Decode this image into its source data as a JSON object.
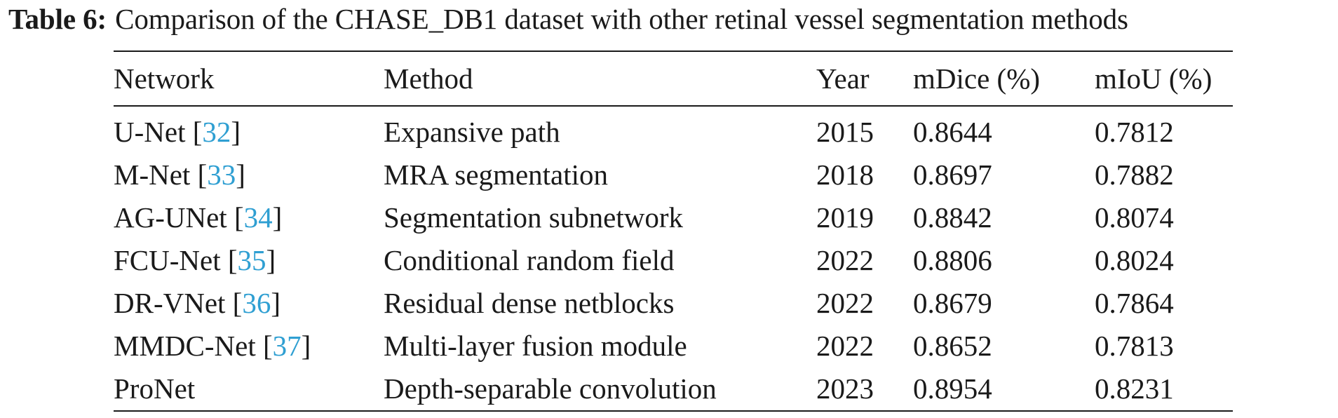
{
  "caption": {
    "label": "Table 6:",
    "text": "Comparison of the CHASE_DB1 dataset with other retinal vessel segmentation methods"
  },
  "table": {
    "columns": [
      "Network",
      "Method",
      "Year",
      "mDice (%)",
      "mIoU (%)"
    ],
    "rows": [
      {
        "network": "U-Net",
        "cite": "32",
        "method": "Expansive path",
        "year": "2015",
        "mdice": "0.8644",
        "miou": "0.7812"
      },
      {
        "network": "M-Net",
        "cite": "33",
        "method": "MRA segmentation",
        "year": "2018",
        "mdice": "0.8697",
        "miou": "0.7882"
      },
      {
        "network": "AG-UNet",
        "cite": "34",
        "method": "Segmentation subnetwork",
        "year": "2019",
        "mdice": "0.8842",
        "miou": "0.8074"
      },
      {
        "network": "FCU-Net",
        "cite": "35",
        "method": "Conditional random field",
        "year": "2022",
        "mdice": "0.8806",
        "miou": "0.8024"
      },
      {
        "network": "DR-VNet",
        "cite": "36",
        "method": "Residual dense netblocks",
        "year": "2022",
        "mdice": "0.8679",
        "miou": "0.7864"
      },
      {
        "network": "MMDC-Net",
        "cite": "37",
        "method": "Multi-layer fusion module",
        "year": "2022",
        "mdice": "0.8652",
        "miou": "0.7813"
      },
      {
        "network": "ProNet",
        "cite": null,
        "method": "Depth-separable convolution",
        "year": "2023",
        "mdice": "0.8954",
        "miou": "0.8231",
        "best": true
      }
    ]
  },
  "colors": {
    "citation": "#2f9fd2",
    "text": "#1a1a1a"
  }
}
